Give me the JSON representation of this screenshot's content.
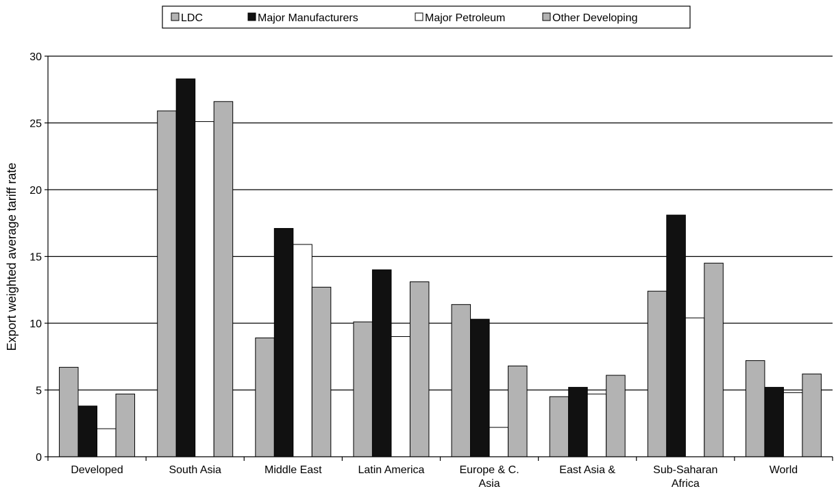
{
  "chart_data": {
    "type": "bar",
    "title": "",
    "xlabel": "",
    "ylabel": "Export weighted average tariff rate",
    "ylim": [
      0,
      30
    ],
    "yticks": [
      0,
      5,
      10,
      15,
      20,
      25,
      30
    ],
    "grid": true,
    "legend_position": "top",
    "categories": [
      [
        "Developed"
      ],
      [
        "South Asia"
      ],
      [
        "Middle East"
      ],
      [
        "Latin America"
      ],
      [
        "Europe & C.",
        "Asia"
      ],
      [
        "East Asia &"
      ],
      [
        "Sub-Saharan",
        "Africa"
      ],
      [
        "World"
      ]
    ],
    "series": [
      {
        "name": "LDC",
        "color": "#b3b3b3",
        "values": [
          6.7,
          25.9,
          8.9,
          10.1,
          11.4,
          4.5,
          12.4,
          7.2
        ]
      },
      {
        "name": "Major Manufacturers",
        "color": "#111111",
        "values": [
          3.8,
          28.3,
          17.1,
          14.0,
          10.3,
          5.2,
          18.1,
          5.2
        ]
      },
      {
        "name": "Major Petroleum",
        "color": "#ffffff",
        "values": [
          2.1,
          25.1,
          15.9,
          9.0,
          2.2,
          4.7,
          10.4,
          4.8
        ]
      },
      {
        "name": "Other Developing",
        "color": "#b3b3b3",
        "values": [
          4.7,
          26.6,
          12.7,
          13.1,
          6.8,
          6.1,
          14.5,
          6.2
        ]
      }
    ]
  }
}
